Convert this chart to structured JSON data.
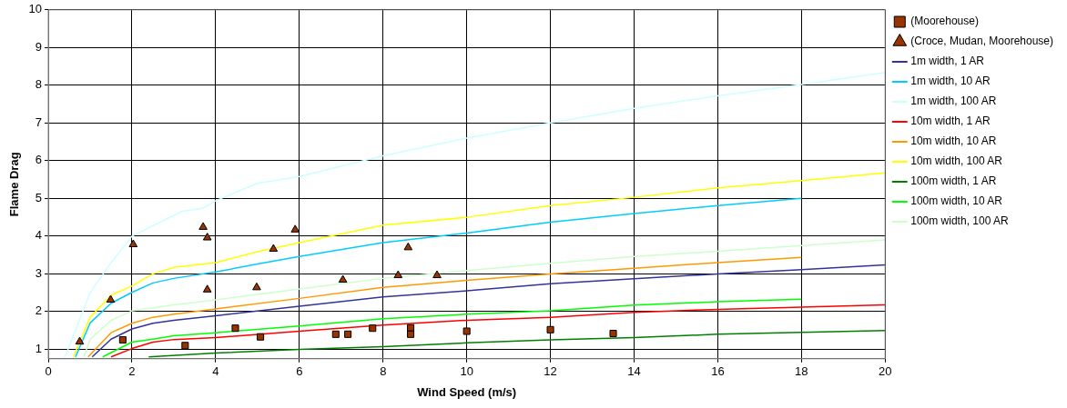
{
  "chart_data": {
    "type": "line",
    "xlabel": "Wind Speed (m/s)",
    "ylabel": "Flame Drag",
    "xlim": [
      0,
      20
    ],
    "xticks": [
      0,
      2,
      4,
      6,
      8,
      10,
      12,
      14,
      16,
      18,
      20
    ],
    "ylim": [
      0.75,
      10
    ],
    "yticks": [
      1,
      2,
      3,
      4,
      5,
      6,
      7,
      8,
      9,
      10
    ],
    "grid": true,
    "legend": "right",
    "marker": "none",
    "line_style": "solid",
    "series": [
      {
        "name": "(Moorehouse)",
        "type": "scatter",
        "marker": "square",
        "color": "#993300",
        "x": [
          1.78,
          3.27,
          4.47,
          5.07,
          6.87,
          7.16,
          7.75,
          8.66,
          8.66,
          10,
          12,
          13.5
        ],
        "values": [
          1.25,
          1.1,
          1.56,
          1.33,
          1.4,
          1.4,
          1.56,
          1.57,
          1.4,
          1.48,
          1.52,
          1.42
        ]
      },
      {
        "name": "(Croce, Mudan, Moorehouse)",
        "type": "scatter",
        "marker": "triangle",
        "color": "#993300",
        "x": [
          0.75,
          1.49,
          2.03,
          3.7,
          3.8,
          3.8,
          4.98,
          5.38,
          5.9,
          7.04,
          8.36,
          8.6,
          9.29
        ],
        "values": [
          1.2,
          2.31,
          3.78,
          4.24,
          3.96,
          2.58,
          2.64,
          3.66,
          4.17,
          2.84,
          2.96,
          3.7,
          2.96
        ]
      },
      {
        "name": "1m width, 1 AR",
        "color": "#333399",
        "x": [
          1.05,
          1.5,
          2,
          2.5,
          3,
          4,
          6,
          8,
          10,
          12,
          14,
          16,
          18,
          20
        ],
        "values": [
          0.8,
          1.27,
          1.54,
          1.69,
          1.77,
          1.89,
          2.14,
          2.39,
          2.55,
          2.74,
          2.87,
          3.0,
          3.11,
          3.24
        ]
      },
      {
        "name": "1m width, 10 AR",
        "color": "#00ccff",
        "x": [
          0.65,
          1,
          1.5,
          2,
          2.5,
          3,
          4,
          5,
          6,
          8,
          10,
          12,
          14,
          16,
          18
        ],
        "values": [
          0.8,
          1.7,
          2.22,
          2.51,
          2.76,
          2.88,
          3.05,
          3.26,
          3.46,
          3.83,
          4.08,
          4.37,
          4.6,
          4.81,
          5.0
        ]
      },
      {
        "name": "1m width, 100 AR",
        "color": "#ccffff",
        "x": [
          0.4,
          1,
          1.5,
          2,
          3.2,
          3.7,
          4,
          5,
          6,
          8,
          10,
          12,
          14,
          16,
          18,
          20
        ],
        "values": [
          0.8,
          2.5,
          3.3,
          4.0,
          4.66,
          4.74,
          4.94,
          5.4,
          5.58,
          6.13,
          6.6,
          7.0,
          7.39,
          7.72,
          8.02,
          8.34
        ]
      },
      {
        "name": "10m width, 1 AR",
        "color": "#ff0000",
        "x": [
          1.5,
          2,
          2.5,
          3,
          4,
          6,
          8,
          10,
          12,
          14,
          16,
          18,
          20
        ],
        "values": [
          0.8,
          1.02,
          1.19,
          1.26,
          1.31,
          1.48,
          1.64,
          1.77,
          1.85,
          1.98,
          2.06,
          2.12,
          2.18
        ]
      },
      {
        "name": "10m width, 10 AR",
        "color": "#ff9900",
        "x": [
          0.95,
          1.5,
          2,
          2.5,
          3,
          4,
          6,
          8,
          10,
          12,
          14,
          16,
          18
        ],
        "values": [
          0.8,
          1.44,
          1.69,
          1.85,
          1.93,
          2.07,
          2.35,
          2.64,
          2.83,
          3.0,
          3.15,
          3.3,
          3.44
        ]
      },
      {
        "name": "10m width, 100 AR",
        "color": "#ffff00",
        "x": [
          0.6,
          1,
          1.5,
          2,
          2.5,
          3,
          4,
          5,
          6,
          8,
          10,
          12,
          14,
          16,
          18,
          20
        ],
        "values": [
          0.8,
          1.85,
          2.43,
          2.68,
          3.0,
          3.17,
          3.3,
          3.59,
          3.83,
          4.29,
          4.5,
          4.81,
          5.03,
          5.28,
          5.47,
          5.68
        ]
      },
      {
        "name": "100m width, 1 AR",
        "color": "#008000",
        "x": [
          2.4,
          4,
          6,
          8,
          10,
          12,
          14,
          16,
          18,
          20
        ],
        "values": [
          0.8,
          0.9,
          1.0,
          1.07,
          1.17,
          1.25,
          1.31,
          1.4,
          1.45,
          1.5
        ]
      },
      {
        "name": "100m width, 10 AR",
        "color": "#00ff00",
        "x": [
          1.3,
          2,
          2.5,
          3,
          4,
          6,
          8,
          10,
          12,
          14,
          16,
          18
        ],
        "values": [
          0.8,
          1.19,
          1.27,
          1.36,
          1.44,
          1.62,
          1.81,
          1.93,
          2.02,
          2.17,
          2.26,
          2.33
        ]
      },
      {
        "name": "100m width, 100 AR",
        "color": "#ccffcc",
        "x": [
          0.85,
          1,
          1.5,
          2,
          2.5,
          3,
          4,
          6,
          8,
          10,
          12,
          14,
          16,
          18,
          20
        ],
        "values": [
          0.8,
          1.27,
          1.77,
          2.02,
          2.1,
          2.18,
          2.31,
          2.6,
          2.88,
          3.09,
          3.28,
          3.46,
          3.6,
          3.75,
          3.9
        ]
      }
    ]
  }
}
